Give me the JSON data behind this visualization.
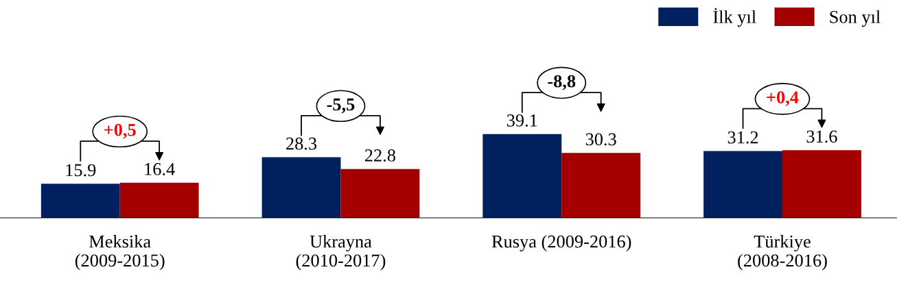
{
  "chart_data": {
    "type": "bar",
    "categories": [
      "Meksika\n(2009-2015)",
      "Ukrayna\n(2010-2017)",
      "Rusya (2009-2016)",
      "Türkiye\n(2008-2016)"
    ],
    "series": [
      {
        "name": "İlk yıl",
        "color": "#002060",
        "values": [
          15.9,
          28.3,
          39.1,
          31.2
        ]
      },
      {
        "name": "Son yıl",
        "color": "#a50000",
        "values": [
          16.4,
          22.8,
          30.3,
          31.6
        ]
      }
    ],
    "data_labels": true,
    "legend": "top right",
    "grid": false,
    "annotations": [
      "+0,5",
      "-5,5",
      "-8,8",
      "+0,4"
    ]
  }
}
